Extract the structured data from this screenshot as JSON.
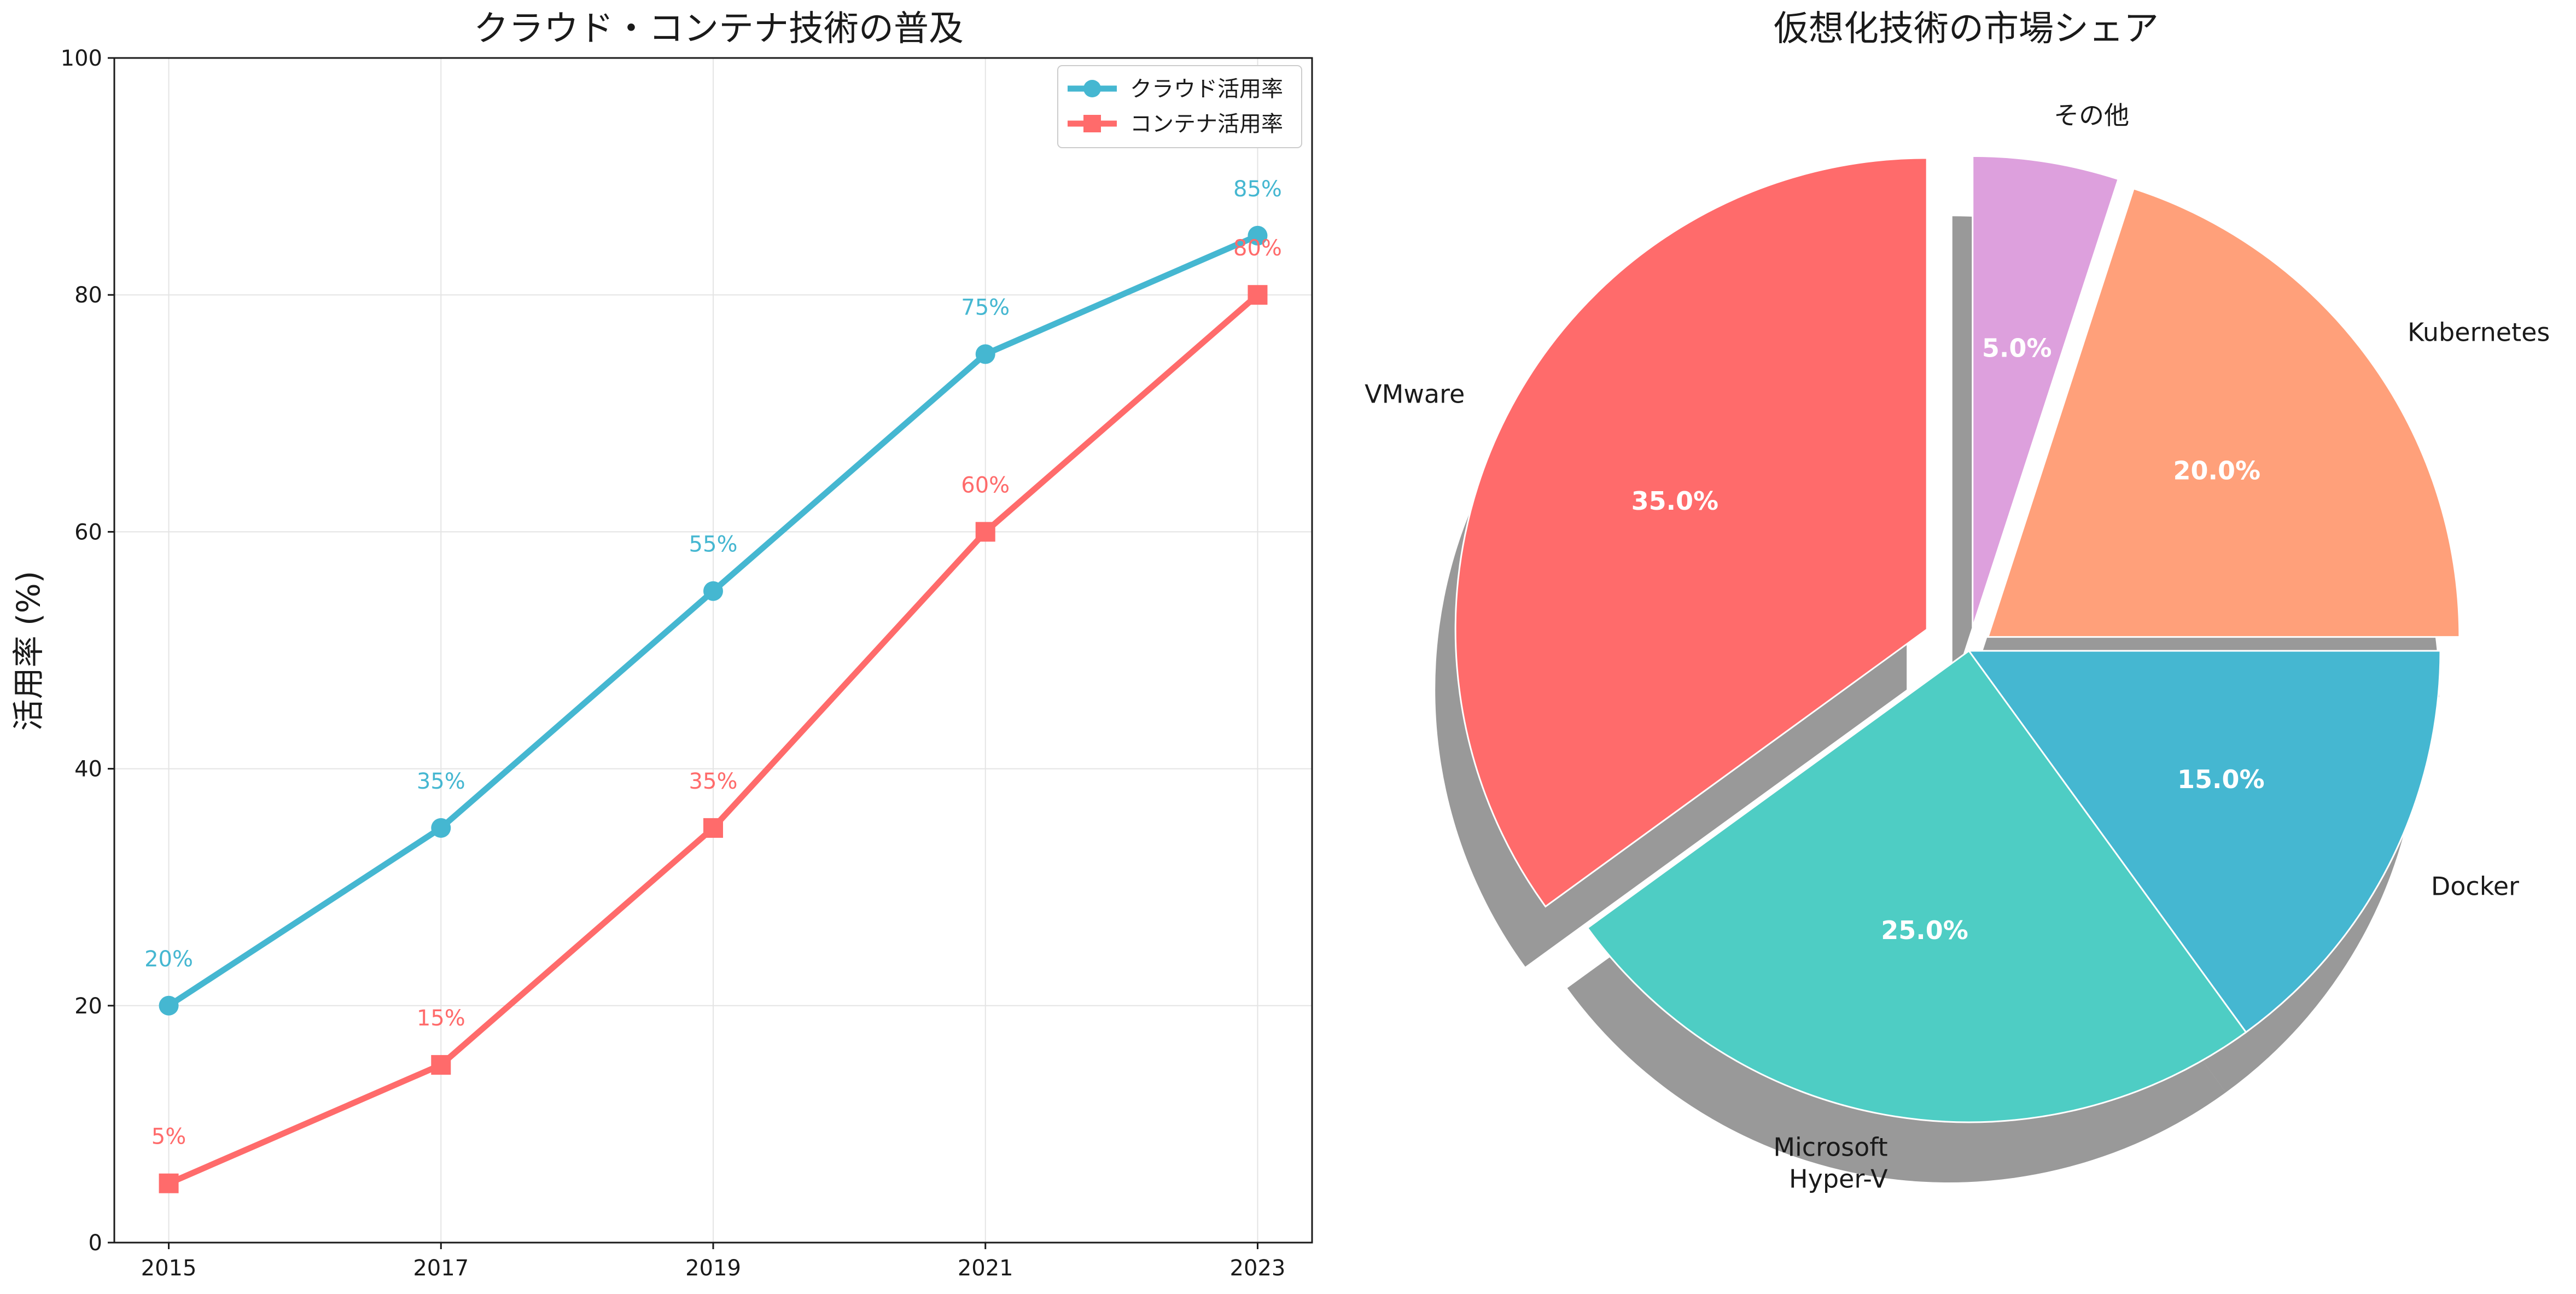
{
  "chart_data": [
    {
      "type": "line",
      "title": "クラウド・コンテナ技術の普及",
      "xlabel": "",
      "ylabel": "活用率 (%)",
      "x": [
        2015,
        2017,
        2019,
        2021,
        2023
      ],
      "ylim": [
        0,
        100
      ],
      "yticks": [
        0,
        20,
        40,
        60,
        80,
        100
      ],
      "grid": true,
      "legend_position": "top-right",
      "series": [
        {
          "name": "クラウド活用率",
          "values": [
            20,
            35,
            55,
            75,
            85
          ],
          "color": "#45B7D1",
          "marker": "circle",
          "labels": [
            "20%",
            "35%",
            "55%",
            "75%",
            "85%"
          ]
        },
        {
          "name": "コンテナ活用率",
          "values": [
            5,
            15,
            35,
            60,
            80
          ],
          "color": "#FF6B6B",
          "marker": "square",
          "labels": [
            "5%",
            "15%",
            "35%",
            "60%",
            "80%"
          ]
        }
      ]
    },
    {
      "type": "pie",
      "title": "仮想化技術の市場シェア",
      "start_angle": 90,
      "direction": "counterclockwise",
      "shadow": true,
      "slices": [
        {
          "label": "VMware",
          "value": 35,
          "pct_label": "35.0%",
          "color": "#FF6B6B",
          "explode": 0.1
        },
        {
          "label": "Microsoft\nHyper-V",
          "value": 25,
          "pct_label": "25.0%",
          "color": "#4ECDC4",
          "explode": 0
        },
        {
          "label": "Docker",
          "value": 15,
          "pct_label": "15.0%",
          "color": "#45B7D1",
          "explode": 0
        },
        {
          "label": "Kubernetes",
          "value": 20,
          "pct_label": "20.0%",
          "color": "#FFA07A",
          "explode": 0.05
        },
        {
          "label": "その他",
          "value": 5,
          "pct_label": "5.0%",
          "color": "#DDA0DD",
          "explode": 0.05
        }
      ]
    }
  ]
}
